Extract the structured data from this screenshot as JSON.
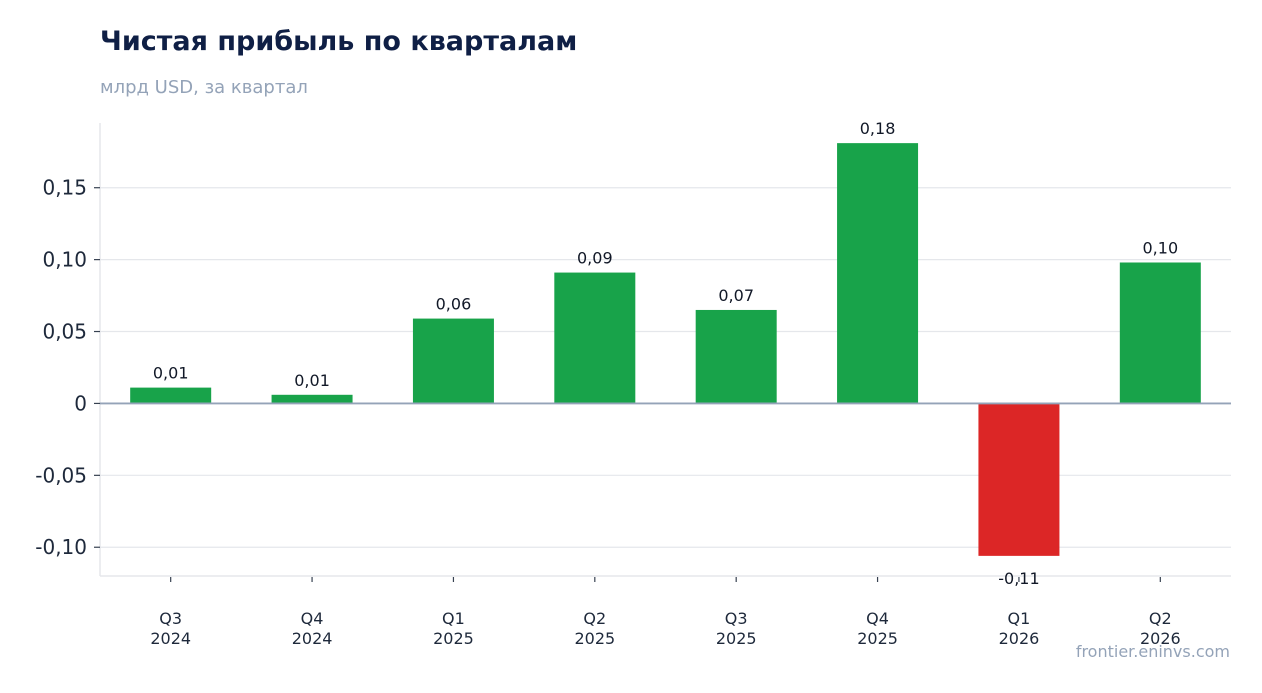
{
  "title": "Чистая прибыль по кварталам",
  "subtitle": "млрд USD, за квартал",
  "source": "frontier.eninvs.com",
  "colors": {
    "positive": "#18a34a",
    "negative": "#dc2626",
    "grid": "#e5e7eb",
    "zero": "#94a3b8",
    "title": "#0f1f45",
    "muted": "#94a3b8"
  },
  "chart_data": {
    "type": "bar",
    "categories": [
      [
        "Q3",
        "2024"
      ],
      [
        "Q4",
        "2024"
      ],
      [
        "Q1",
        "2025"
      ],
      [
        "Q2",
        "2025"
      ],
      [
        "Q3",
        "2025"
      ],
      [
        "Q4",
        "2025"
      ],
      [
        "Q1",
        "2026"
      ],
      [
        "Q2",
        "2026"
      ]
    ],
    "values": [
      0.011,
      0.006,
      0.059,
      0.091,
      0.065,
      0.181,
      -0.106,
      0.098
    ],
    "data_labels": [
      "0,01",
      "0,01",
      "0,06",
      "0,09",
      "0,07",
      "0,18",
      "-0,11",
      "0,10"
    ],
    "yticks": [
      -0.1,
      -0.05,
      0,
      0.05,
      0.1,
      0.15
    ],
    "ytick_labels": [
      "-0,10",
      "-0,05",
      "0",
      "0,05",
      "0,10",
      "0,15"
    ],
    "ylim": [
      -0.12,
      0.195
    ],
    "grid": true,
    "legend": "none"
  }
}
